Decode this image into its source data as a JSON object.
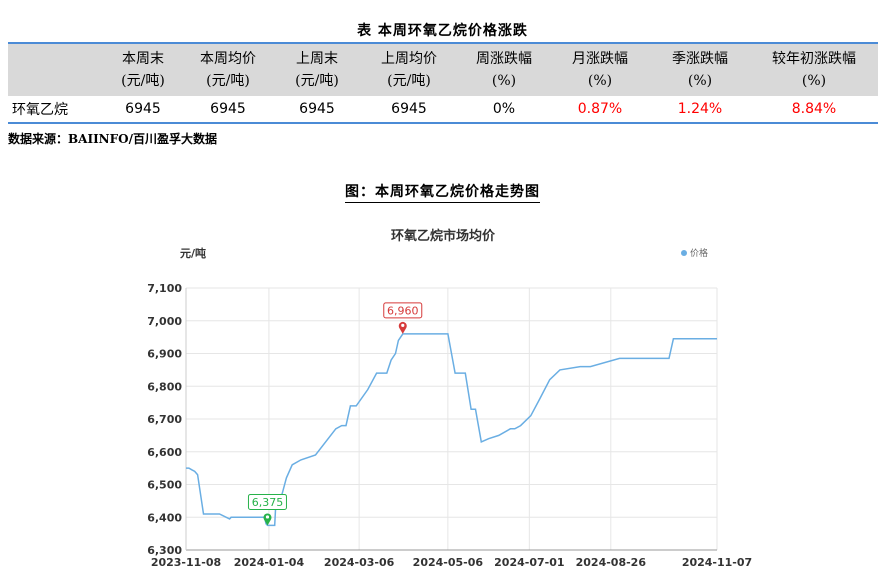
{
  "table": {
    "title": "表 本周环氧乙烷价格涨跌",
    "headers": [
      {
        "line1": "",
        "line2": ""
      },
      {
        "line1": "本周末",
        "line2": "(元/吨)"
      },
      {
        "line1": "本周均价",
        "line2": "(元/吨)"
      },
      {
        "line1": "上周末",
        "line2": "(元/吨)"
      },
      {
        "line1": "上周均价",
        "line2": "(元/吨)"
      },
      {
        "line1": "周涨跌幅",
        "line2": "(%)"
      },
      {
        "line1": "月涨跌幅",
        "line2": "(%)"
      },
      {
        "line1": "季涨跌幅",
        "line2": "(%)"
      },
      {
        "line1": "较年初涨跌幅",
        "line2": "(%)"
      }
    ],
    "row": {
      "name": "环氧乙烷",
      "this_week_end": "6945",
      "this_week_avg": "6945",
      "last_week_end": "6945",
      "last_week_avg": "6945",
      "weekly_change": "0%",
      "monthly_change": "0.87%",
      "quarterly_change": "1.24%",
      "ytd_change": "8.84%"
    }
  },
  "source": "数据来源：BAIINFO/百川盈孚大数据",
  "figure_title": "图：本周环氧乙烷价格走势图",
  "colors": {
    "line": "#6aaee3",
    "max_marker": "#d63a3a",
    "min_marker": "#27b24a",
    "table_border": "#4b8bd6"
  },
  "chart_data": {
    "type": "line",
    "title": "环氧乙烷市场均价",
    "ylabel": "元/吨",
    "legend": "价格",
    "legend_position": "top-right",
    "grid": true,
    "ylim": [
      6300,
      7100
    ],
    "yticks": [
      "6,300",
      "6,400",
      "6,500",
      "6,600",
      "6,700",
      "6,800",
      "6,900",
      "7,000",
      "7,100"
    ],
    "xticks": [
      "2023-11-08",
      "2024-01-04",
      "2024-03-06",
      "2024-05-06",
      "2024-07-01",
      "2024-08-26",
      "2024-11-07"
    ],
    "max_label": "6,960",
    "min_label": "6,375",
    "series": [
      {
        "name": "价格",
        "x": [
          "2023-11-08",
          "2023-11-10",
          "2023-11-12",
          "2023-11-14",
          "2023-11-16",
          "2023-11-20",
          "2023-11-22",
          "2023-12-01",
          "2023-12-08",
          "2023-12-09",
          "2023-12-11",
          "2023-12-20",
          "2023-12-28",
          "2024-01-01",
          "2024-01-02",
          "2024-01-03",
          "2024-01-04",
          "2024-01-08",
          "2024-01-09",
          "2024-01-13",
          "2024-01-16",
          "2024-01-20",
          "2024-01-26",
          "2024-02-05",
          "2024-02-19",
          "2024-02-23",
          "2024-02-26",
          "2024-02-29",
          "2024-03-04",
          "2024-03-12",
          "2024-03-18",
          "2024-03-25",
          "2024-03-28",
          "2024-03-31",
          "2024-04-02",
          "2024-04-05",
          "2024-04-08",
          "2024-04-20",
          "2024-04-28",
          "2024-05-06",
          "2024-05-11",
          "2024-05-13",
          "2024-05-18",
          "2024-05-22",
          "2024-05-25",
          "2024-05-29",
          "2024-06-03",
          "2024-06-10",
          "2024-06-18",
          "2024-06-21",
          "2024-06-25",
          "2024-07-02",
          "2024-07-08",
          "2024-07-15",
          "2024-07-22",
          "2024-08-05",
          "2024-08-12",
          "2024-09-01",
          "2024-10-01",
          "2024-10-05",
          "2024-10-08",
          "2024-11-07"
        ],
        "values": [
          6550,
          6550,
          6545,
          6540,
          6530,
          6410,
          6410,
          6410,
          6395,
          6400,
          6400,
          6400,
          6400,
          6400,
          6380,
          6375,
          6375,
          6375,
          6465,
          6470,
          6520,
          6560,
          6575,
          6590,
          6670,
          6680,
          6680,
          6740,
          6740,
          6790,
          6840,
          6840,
          6880,
          6900,
          6940,
          6960,
          6960,
          6960,
          6960,
          6960,
          6840,
          6840,
          6840,
          6730,
          6730,
          6630,
          6640,
          6650,
          6670,
          6670,
          6680,
          6710,
          6760,
          6820,
          6850,
          6860,
          6860,
          6885,
          6885,
          6885,
          6945,
          6945
        ]
      }
    ]
  }
}
